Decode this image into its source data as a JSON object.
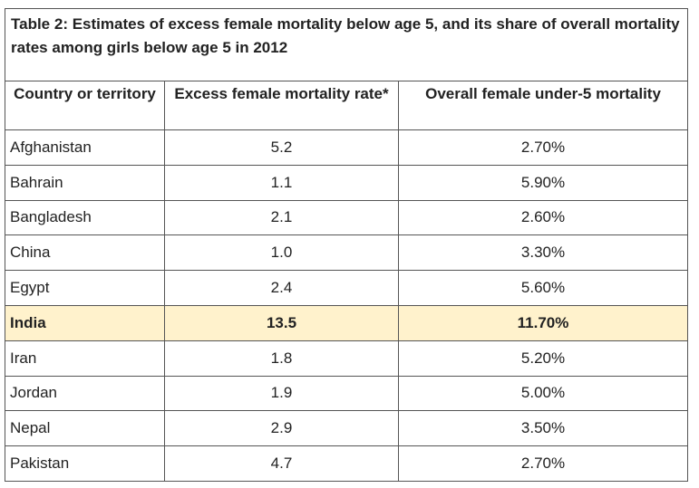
{
  "table": {
    "caption": "Table 2: Estimates of excess female mortality below age 5, and its share of overall mortality rates among girls below age 5 in 2012",
    "headers": {
      "country": "Country or territory",
      "excess": "Excess female mortality rate*",
      "overall": "Overall female under-5 mortality"
    },
    "rows": [
      {
        "country": "Afghanistan",
        "excess": "5.2",
        "overall": "2.70%"
      },
      {
        "country": "Bahrain",
        "excess": "1.1",
        "overall": "5.90%"
      },
      {
        "country": "Bangladesh",
        "excess": "2.1",
        "overall": "2.60%"
      },
      {
        "country": "China",
        "excess": "1.0",
        "overall": "3.30%"
      },
      {
        "country": "Egypt",
        "excess": "2.4",
        "overall": "5.60%"
      },
      {
        "country": "India",
        "excess": "13.5",
        "overall": "11.70%"
      },
      {
        "country": "Iran",
        "excess": "1.8",
        "overall": "5.20%"
      },
      {
        "country": "Jordan",
        "excess": "1.9",
        "overall": "5.00%"
      },
      {
        "country": "Nepal",
        "excess": "2.9",
        "overall": "3.50%"
      },
      {
        "country": "Pakistan",
        "excess": "4.7",
        "overall": "2.70%"
      }
    ],
    "highlight_color": "#fff2cc",
    "highlighted_row": "India"
  }
}
